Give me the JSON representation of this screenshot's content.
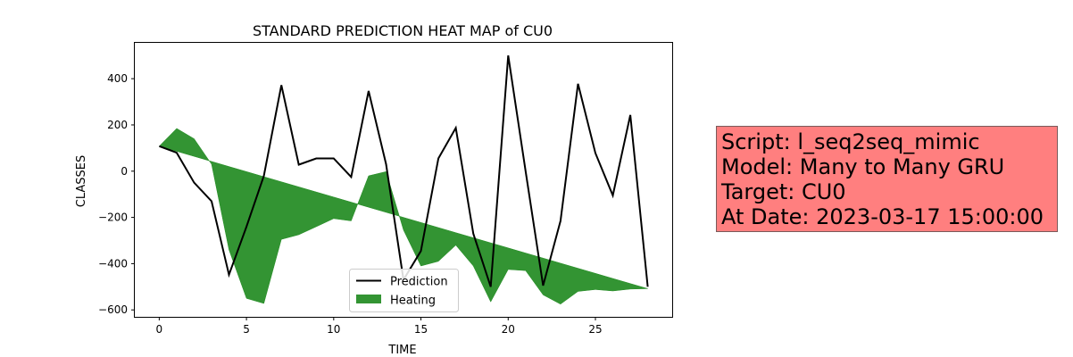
{
  "chart_data": {
    "type": "line",
    "title": "STANDARD PREDICTION HEAT MAP of CU0",
    "xlabel": "TIME",
    "ylabel": "CLASSES",
    "xlim": [
      -1.4,
      29.4
    ],
    "ylim": [
      -630,
      555
    ],
    "xticks": [
      0,
      5,
      10,
      15,
      20,
      25
    ],
    "yticks": [
      -600,
      -400,
      -200,
      0,
      200,
      400
    ],
    "x": [
      0,
      1,
      2,
      3,
      4,
      5,
      6,
      7,
      8,
      9,
      10,
      11,
      12,
      13,
      14,
      15,
      16,
      17,
      18,
      19,
      20,
      21,
      22,
      23,
      24,
      25,
      26,
      27,
      28
    ],
    "series": [
      {
        "name": "Prediction",
        "color": "#000000",
        "values": [
          108,
          80,
          -50,
          -130,
          -448,
          -240,
          -20,
          372,
          28,
          55,
          55,
          -25,
          347,
          30,
          -470,
          -345,
          55,
          187,
          -270,
          -500,
          500,
          0,
          -495,
          -215,
          378,
          78,
          -105,
          243,
          -500
        ]
      },
      {
        "name": "Heating",
        "type": "area",
        "color": "#228b22",
        "opacity": 0.92,
        "baseline": [
          108,
          86,
          64,
          42,
          20,
          -2,
          -24,
          -46,
          -68,
          -90,
          -112,
          -134,
          -156,
          -178,
          -200,
          -222,
          -244,
          -266,
          -288,
          -310,
          -332,
          -354,
          -376,
          -398,
          -420,
          -442,
          -464,
          -486,
          -508
        ],
        "values": [
          108,
          185,
          140,
          30,
          -340,
          -550,
          -572,
          -295,
          -275,
          -240,
          -205,
          -215,
          -20,
          -2,
          -255,
          -410,
          -390,
          -320,
          -410,
          -565,
          -425,
          -430,
          -535,
          -575,
          -520,
          -512,
          -518,
          -510,
          -508
        ]
      }
    ],
    "legend": {
      "position": "bottom-center"
    },
    "grid": false
  },
  "info_box": {
    "script": "Script: l_seq2seq_mimic",
    "model": "Model: Many to Many GRU",
    "target": "Target: CU0",
    "date": "At Date: 2023-03-17 15:00:00",
    "background": "#ff7f7f"
  }
}
